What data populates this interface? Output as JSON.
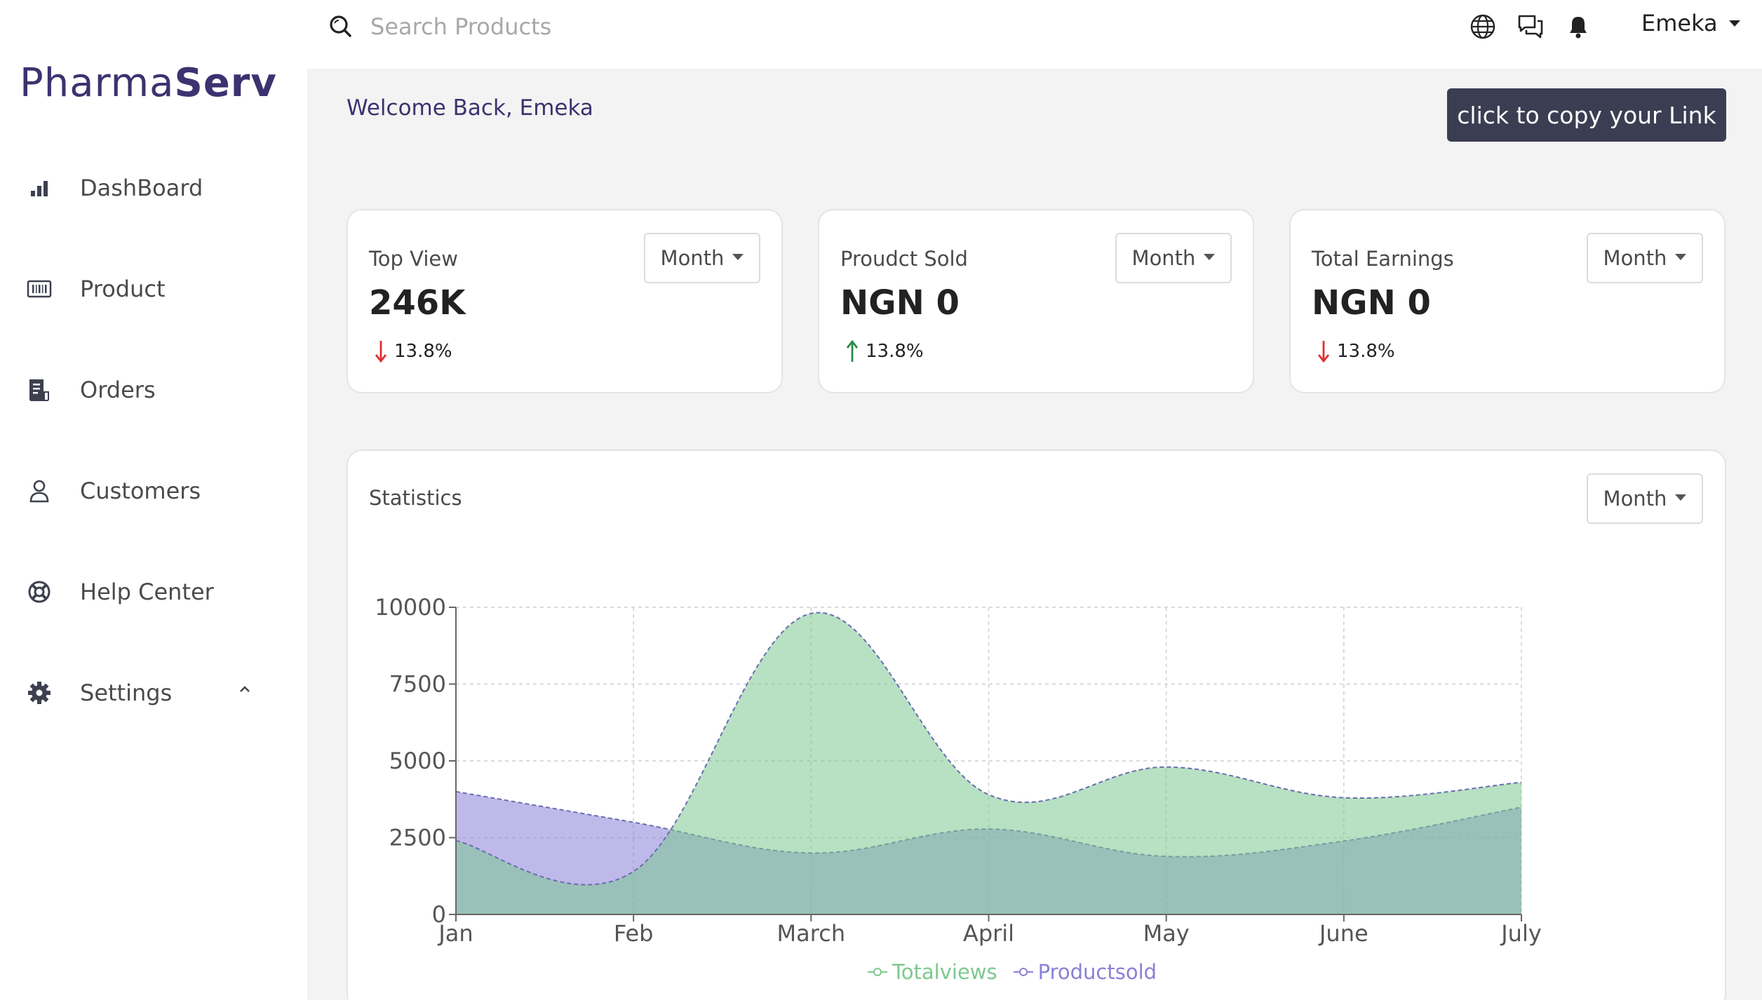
{
  "app": {
    "logo_light": "Pharma",
    "logo_bold": "Serv"
  },
  "sidebar": {
    "items": [
      {
        "label": "DashBoard",
        "icon": "bar-chart-icon"
      },
      {
        "label": "Product",
        "icon": "barcode-icon"
      },
      {
        "label": "Orders",
        "icon": "document-icon"
      },
      {
        "label": "Customers",
        "icon": "user-icon"
      },
      {
        "label": "Help Center",
        "icon": "lifebuoy-icon"
      },
      {
        "label": "Settings",
        "icon": "gear-icon"
      }
    ]
  },
  "topbar": {
    "search_placeholder": "Search Products",
    "user_name": "Emeka"
  },
  "main": {
    "welcome": "Welcome Back, Emeka",
    "copy_link_label": "click to copy your Link"
  },
  "cards": [
    {
      "title": "Top View",
      "value": "246K",
      "change": "13.8%",
      "trend": "down",
      "filter": "Month"
    },
    {
      "title": "Proudct Sold",
      "value": "NGN 0",
      "change": "13.8%",
      "trend": "up",
      "filter": "Month"
    },
    {
      "title": "Total Earnings",
      "value": "NGN 0",
      "change": "13.8%",
      "trend": "down",
      "filter": "Month"
    }
  ],
  "statistics": {
    "title": "Statistics",
    "filter": "Month"
  },
  "colors": {
    "accent": "#3d3270",
    "totalviews": "#7cc98f",
    "productsold": "#8a80d8",
    "down": "#e03030",
    "up": "#2a8a4a",
    "button": "#3b3e52"
  },
  "chart_data": {
    "type": "area",
    "categories": [
      "Jan",
      "Feb",
      "March",
      "April",
      "May",
      "June",
      "July"
    ],
    "series": [
      {
        "name": "Totalviews",
        "values": [
          2400,
          1400,
          9800,
          3900,
          4800,
          3800,
          4300
        ]
      },
      {
        "name": "Productsold",
        "values": [
          4000,
          3000,
          2000,
          2780,
          1890,
          2390,
          3490
        ]
      }
    ],
    "yticks": [
      "0",
      "2500",
      "5000",
      "7500",
      "10000"
    ],
    "ylim": [
      0,
      10000
    ],
    "grid": true,
    "legend": "bottom-center"
  }
}
